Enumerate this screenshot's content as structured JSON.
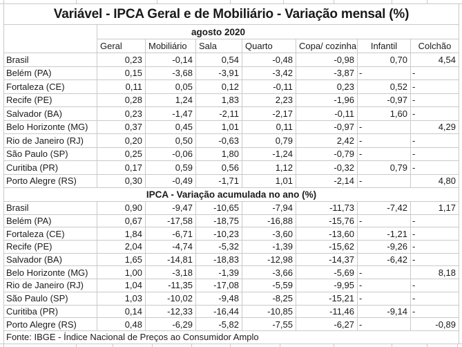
{
  "title": "Variável - IPCA Geral e de Mobiliário - Variação mensal (%)",
  "footer": "Fonte: IBGE - Índice Nacional de Preços ao Consumidor Amplo",
  "colors": {
    "grid_line": "#c9c9c9",
    "text": "#1a1a1a",
    "background": "#ffffff"
  },
  "table": {
    "period_header": "agosto 2020",
    "columns": [
      "Geral",
      "Mobiliário",
      "Sala",
      "Quarto",
      "Copa/ cozinha",
      "Infantil",
      "Colchão"
    ],
    "sections": [
      {
        "name": "monthly-variation",
        "header": "agosto 2020",
        "rows": [
          {
            "label": "Brasil",
            "values": [
              "0,23",
              "-0,14",
              "0,54",
              "-0,48",
              "-0,98",
              "0,70",
              "4,54"
            ]
          },
          {
            "label": "Belém (PA)",
            "values": [
              "0,15",
              "-3,68",
              "-3,91",
              "-3,42",
              "-3,87",
              "-",
              "-"
            ]
          },
          {
            "label": "Fortaleza (CE)",
            "values": [
              "0,11",
              "0,05",
              "0,12",
              "-0,11",
              "0,23",
              "0,52",
              "-"
            ]
          },
          {
            "label": "Recife (PE)",
            "values": [
              "0,28",
              "1,24",
              "1,83",
              "2,23",
              "-1,96",
              "-0,97",
              "-"
            ]
          },
          {
            "label": "Salvador (BA)",
            "values": [
              "0,23",
              "-1,47",
              "-2,11",
              "-2,17",
              "-0,11",
              "1,60",
              "-"
            ]
          },
          {
            "label": "Belo Horizonte (MG)",
            "values": [
              "0,37",
              "0,45",
              "1,01",
              "0,11",
              "-0,97",
              "-",
              "4,29"
            ]
          },
          {
            "label": "Rio de Janeiro (RJ)",
            "values": [
              "0,20",
              "0,50",
              "-0,63",
              "0,79",
              "2,42",
              "-",
              "-"
            ]
          },
          {
            "label": "São Paulo (SP)",
            "values": [
              "0,25",
              "-0,06",
              "1,80",
              "-1,24",
              "-0,79",
              "-",
              "-"
            ]
          },
          {
            "label": "Curitiba (PR)",
            "values": [
              "0,17",
              "0,59",
              "0,56",
              "1,12",
              "-0,32",
              "0,79",
              "-"
            ]
          },
          {
            "label": "Porto Alegre (RS)",
            "values": [
              "0,30",
              "-0,49",
              "-1,71",
              "1,01",
              "-2,14",
              "-",
              "4,80"
            ]
          }
        ]
      },
      {
        "name": "accumulated-year-variation",
        "header": "IPCA - Variação acumulada no ano (%)",
        "rows": [
          {
            "label": "Brasil",
            "values": [
              "0,90",
              "-9,47",
              "-10,65",
              "-7,94",
              "-11,73",
              "-7,42",
              "1,17"
            ]
          },
          {
            "label": "Belém (PA)",
            "values": [
              "0,67",
              "-17,58",
              "-18,75",
              "-16,88",
              "-15,76",
              "-",
              "-"
            ]
          },
          {
            "label": "Fortaleza (CE)",
            "values": [
              "1,84",
              "-6,71",
              "-10,23",
              "-3,60",
              "-13,60",
              "-1,21",
              "-"
            ]
          },
          {
            "label": "Recife (PE)",
            "values": [
              "2,04",
              "-4,74",
              "-5,32",
              "-1,39",
              "-15,62",
              "-9,26",
              "-"
            ]
          },
          {
            "label": "Salvador (BA)",
            "values": [
              "1,65",
              "-14,81",
              "-18,83",
              "-12,98",
              "-14,37",
              "-6,42",
              "-"
            ]
          },
          {
            "label": "Belo Horizonte (MG)",
            "values": [
              "1,00",
              "-3,18",
              "-1,39",
              "-3,66",
              "-5,69",
              "-",
              "8,18"
            ]
          },
          {
            "label": "Rio de Janeiro (RJ)",
            "values": [
              "1,04",
              "-11,35",
              "-17,08",
              "-5,59",
              "-9,95",
              "-",
              "-"
            ]
          },
          {
            "label": "São Paulo (SP)",
            "values": [
              "1,03",
              "-10,02",
              "-9,48",
              "-8,25",
              "-15,21",
              "-",
              "-"
            ]
          },
          {
            "label": "Curitiba (PR)",
            "values": [
              "0,14",
              "-12,33",
              "-16,44",
              "-10,85",
              "-11,46",
              "-9,14",
              "-"
            ]
          },
          {
            "label": "Porto Alegre (RS)",
            "values": [
              "0,48",
              "-6,29",
              "-5,82",
              "-7,55",
              "-6,27",
              "-",
              "-0,89"
            ]
          }
        ]
      }
    ]
  }
}
